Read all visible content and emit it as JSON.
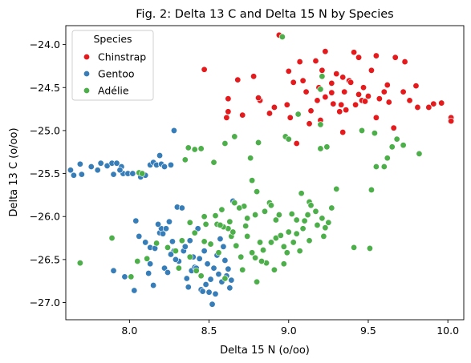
{
  "chart_data": {
    "type": "scatter",
    "title": "Fig. 2: Delta 13 C and Delta 15 N by Species",
    "xlabel": "Delta 15 N (o/oo)",
    "ylabel": "Delta 13 C (o/oo)",
    "xlim": [
      7.6,
      10.1
    ],
    "ylim": [
      -27.2,
      -23.78
    ],
    "xticks": [
      8.0,
      8.5,
      9.0,
      9.5,
      10.0
    ],
    "xtick_labels": [
      "8.0",
      "8.5",
      "9.0",
      "9.5",
      "10.0"
    ],
    "yticks": [
      -24.0,
      -24.5,
      -25.0,
      -25.5,
      -26.0,
      -26.5,
      -27.0
    ],
    "ytick_labels": [
      "−24.0",
      "−24.5",
      "−25.0",
      "−25.5",
      "−26.0",
      "−26.5",
      "−27.0"
    ],
    "grid": false,
    "legend": {
      "title": "Species",
      "placement": "upper-left"
    },
    "series": [
      {
        "name": "Chinstrap",
        "color": "#e41a1c",
        "points": [
          [
            8.94,
            -23.89
          ],
          [
            9.23,
            -24.08
          ],
          [
            9.41,
            -24.09
          ],
          [
            9.07,
            -24.2
          ],
          [
            9.17,
            -24.19
          ],
          [
            9.44,
            -24.15
          ],
          [
            9.55,
            -24.13
          ],
          [
            9.67,
            -24.15
          ],
          [
            9.73,
            -24.2
          ],
          [
            9.21,
            -24.3
          ],
          [
            9.0,
            -24.31
          ],
          [
            9.3,
            -24.34
          ],
          [
            9.52,
            -24.3
          ],
          [
            9.34,
            -24.38
          ],
          [
            9.38,
            -24.42
          ],
          [
            8.78,
            -24.37
          ],
          [
            8.68,
            -24.41
          ],
          [
            9.39,
            -24.44
          ],
          [
            9.03,
            -24.44
          ],
          [
            9.62,
            -24.47
          ],
          [
            9.8,
            -24.48
          ],
          [
            9.11,
            -24.55
          ],
          [
            9.27,
            -24.56
          ],
          [
            9.35,
            -24.55
          ],
          [
            9.23,
            -24.61
          ],
          [
            9.72,
            -24.55
          ],
          [
            9.76,
            -24.65
          ],
          [
            9.63,
            -24.67
          ],
          [
            9.57,
            -24.63
          ],
          [
            9.5,
            -24.6
          ],
          [
            9.44,
            -24.58
          ],
          [
            9.28,
            -24.69
          ],
          [
            9.42,
            -24.7
          ],
          [
            9.33,
            -24.7
          ],
          [
            9.46,
            -24.65
          ],
          [
            8.62,
            -24.63
          ],
          [
            8.82,
            -24.65
          ],
          [
            8.99,
            -24.7
          ],
          [
            9.18,
            -24.65
          ],
          [
            9.81,
            -24.73
          ],
          [
            9.91,
            -24.69
          ],
          [
            9.88,
            -24.73
          ],
          [
            9.96,
            -24.68
          ],
          [
            9.14,
            -24.77
          ],
          [
            9.32,
            -24.78
          ],
          [
            8.88,
            -24.8
          ],
          [
            8.71,
            -24.82
          ],
          [
            8.61,
            -24.85
          ],
          [
            9.01,
            -24.85
          ],
          [
            9.2,
            -24.88
          ],
          [
            9.36,
            -24.76
          ],
          [
            10.02,
            -24.85
          ],
          [
            10.02,
            -24.89
          ],
          [
            9.55,
            -24.85
          ],
          [
            9.13,
            -24.92
          ],
          [
            9.34,
            -25.02
          ],
          [
            9.66,
            -24.97
          ],
          [
            9.05,
            -25.15
          ],
          [
            8.47,
            -24.29
          ],
          [
            8.62,
            -24.78
          ],
          [
            8.81,
            -24.62
          ],
          [
            8.91,
            -24.73
          ],
          [
            9.48,
            -24.66
          ],
          [
            9.6,
            -24.55
          ],
          [
            9.27,
            -24.45
          ],
          [
            9.09,
            -24.42
          ],
          [
            9.19,
            -24.5
          ],
          [
            9.47,
            -24.5
          ]
        ]
      },
      {
        "name": "Gentoo",
        "color": "#377eb8",
        "points": [
          [
            7.63,
            -25.46
          ],
          [
            7.65,
            -25.52
          ],
          [
            7.69,
            -25.39
          ],
          [
            7.7,
            -25.51
          ],
          [
            7.76,
            -25.42
          ],
          [
            7.8,
            -25.46
          ],
          [
            7.82,
            -25.38
          ],
          [
            7.86,
            -25.41
          ],
          [
            7.89,
            -25.38
          ],
          [
            7.92,
            -25.38
          ],
          [
            7.9,
            -25.51
          ],
          [
            7.95,
            -25.42
          ],
          [
            7.96,
            -25.5
          ],
          [
            7.99,
            -25.5
          ],
          [
            8.02,
            -25.5
          ],
          [
            8.07,
            -25.54
          ],
          [
            8.1,
            -25.52
          ],
          [
            8.13,
            -25.4
          ],
          [
            8.15,
            -25.37
          ],
          [
            8.17,
            -25.4
          ],
          [
            8.2,
            -25.39
          ],
          [
            8.22,
            -25.42
          ],
          [
            8.26,
            -25.4
          ],
          [
            8.28,
            -25.0
          ],
          [
            8.19,
            -25.29
          ],
          [
            7.94,
            -25.46
          ],
          [
            8.04,
            -26.05
          ],
          [
            8.03,
            -26.86
          ],
          [
            7.9,
            -26.63
          ],
          [
            7.97,
            -26.7
          ],
          [
            8.06,
            -26.23
          ],
          [
            8.1,
            -26.3
          ],
          [
            8.13,
            -26.36
          ],
          [
            8.16,
            -26.37
          ],
          [
            8.19,
            -26.19
          ],
          [
            8.2,
            -26.14
          ],
          [
            8.21,
            -26.2
          ],
          [
            8.23,
            -26.14
          ],
          [
            8.25,
            -26.06
          ],
          [
            8.27,
            -26.29
          ],
          [
            8.28,
            -26.4
          ],
          [
            8.3,
            -25.89
          ],
          [
            8.31,
            -26.52
          ],
          [
            8.33,
            -25.9
          ],
          [
            8.34,
            -26.4
          ],
          [
            8.36,
            -26.72
          ],
          [
            8.38,
            -26.28
          ],
          [
            8.39,
            -26.63
          ],
          [
            8.4,
            -26.47
          ],
          [
            8.41,
            -26.59
          ],
          [
            8.43,
            -26.14
          ],
          [
            8.44,
            -26.49
          ],
          [
            8.45,
            -26.85
          ],
          [
            8.46,
            -26.87
          ],
          [
            8.48,
            -26.79
          ],
          [
            8.49,
            -26.55
          ],
          [
            8.5,
            -26.88
          ],
          [
            8.51,
            -26.73
          ],
          [
            8.52,
            -27.02
          ],
          [
            8.54,
            -26.9
          ],
          [
            8.55,
            -26.45
          ],
          [
            8.56,
            -26.67
          ],
          [
            8.57,
            -26.26
          ],
          [
            8.58,
            -26.76
          ],
          [
            8.6,
            -26.51
          ],
          [
            8.61,
            -26.69
          ],
          [
            8.62,
            -26.61
          ],
          [
            8.64,
            -26.74
          ],
          [
            8.65,
            -25.82
          ],
          [
            8.22,
            -26.6
          ],
          [
            8.24,
            -26.65
          ],
          [
            8.18,
            -26.09
          ],
          [
            8.13,
            -26.55
          ],
          [
            8.29,
            -26.5
          ],
          [
            8.35,
            -26.35
          ],
          [
            8.42,
            -26.6
          ],
          [
            8.47,
            -26.4
          ],
          [
            8.53,
            -26.6
          ],
          [
            8.15,
            -26.8
          ],
          [
            8.59,
            -26.35
          ],
          [
            8.63,
            -26.83
          ],
          [
            8.37,
            -26.82
          ],
          [
            8.12,
            -26.66
          ],
          [
            8.26,
            -26.44
          ]
        ]
      },
      {
        "name": "Adélie",
        "color": "#4daf4a",
        "points": [
          [
            8.96,
            -23.91
          ],
          [
            9.21,
            -24.37
          ],
          [
            9.2,
            -24.52
          ],
          [
            9.06,
            -24.81
          ],
          [
            9.2,
            -24.93
          ],
          [
            9.46,
            -25.0
          ],
          [
            9.54,
            -25.03
          ],
          [
            8.98,
            -25.07
          ],
          [
            9.0,
            -25.1
          ],
          [
            8.81,
            -25.14
          ],
          [
            8.66,
            -25.07
          ],
          [
            8.6,
            -25.15
          ],
          [
            8.45,
            -25.21
          ],
          [
            8.37,
            -25.2
          ],
          [
            8.41,
            -25.22
          ],
          [
            9.2,
            -25.21
          ],
          [
            9.24,
            -25.19
          ],
          [
            9.68,
            -25.1
          ],
          [
            9.72,
            -25.17
          ],
          [
            9.65,
            -25.19
          ],
          [
            9.62,
            -25.32
          ],
          [
            9.55,
            -25.42
          ],
          [
            9.82,
            -25.27
          ],
          [
            9.6,
            -25.42
          ],
          [
            8.53,
            -25.37
          ],
          [
            8.35,
            -25.34
          ],
          [
            8.76,
            -25.32
          ],
          [
            8.77,
            -25.58
          ],
          [
            8.06,
            -25.49
          ],
          [
            8.08,
            -25.5
          ],
          [
            8.66,
            -25.84
          ],
          [
            8.88,
            -25.84
          ],
          [
            9.08,
            -25.73
          ],
          [
            9.13,
            -25.83
          ],
          [
            9.14,
            -25.87
          ],
          [
            9.12,
            -25.98
          ],
          [
            9.17,
            -25.94
          ],
          [
            9.27,
            -25.9
          ],
          [
            9.3,
            -25.68
          ],
          [
            9.52,
            -25.69
          ],
          [
            9.41,
            -26.36
          ],
          [
            9.51,
            -26.37
          ],
          [
            8.8,
            -25.71
          ],
          [
            8.89,
            -25.87
          ],
          [
            8.94,
            -25.98
          ],
          [
            9.02,
            -25.97
          ],
          [
            9.05,
            -26.04
          ],
          [
            9.09,
            -26.14
          ],
          [
            9.18,
            -26.1
          ],
          [
            9.21,
            -26.02
          ],
          [
            9.23,
            -26.13
          ],
          [
            8.85,
            -25.94
          ],
          [
            8.79,
            -25.98
          ],
          [
            8.72,
            -25.88
          ],
          [
            8.73,
            -26.11
          ],
          [
            8.69,
            -25.9
          ],
          [
            8.74,
            -26.23
          ],
          [
            8.82,
            -26.3
          ],
          [
            8.84,
            -26.39
          ],
          [
            8.86,
            -26.54
          ],
          [
            8.89,
            -26.3
          ],
          [
            8.92,
            -26.25
          ],
          [
            8.95,
            -26.22
          ],
          [
            8.97,
            -26.35
          ],
          [
            8.99,
            -26.42
          ],
          [
            9.03,
            -26.3
          ],
          [
            9.05,
            -26.2
          ],
          [
            9.1,
            -26.05
          ],
          [
            9.22,
            -26.23
          ],
          [
            8.47,
            -26.0
          ],
          [
            8.48,
            -26.09
          ],
          [
            8.55,
            -26.09
          ],
          [
            8.58,
            -25.92
          ],
          [
            8.62,
            -26.14
          ],
          [
            8.64,
            -26.23
          ],
          [
            8.67,
            -26.34
          ],
          [
            8.7,
            -26.47
          ],
          [
            8.77,
            -26.42
          ],
          [
            8.79,
            -26.48
          ],
          [
            8.83,
            -26.52
          ],
          [
            8.91,
            -26.62
          ],
          [
            8.97,
            -26.55
          ],
          [
            8.54,
            -25.99
          ],
          [
            8.59,
            -26.12
          ],
          [
            8.63,
            -26.06
          ],
          [
            8.38,
            -26.07
          ],
          [
            8.33,
            -26.28
          ],
          [
            8.29,
            -26.4
          ],
          [
            8.38,
            -26.47
          ],
          [
            8.42,
            -26.63
          ],
          [
            8.45,
            -26.69
          ],
          [
            8.47,
            -26.29
          ],
          [
            8.51,
            -26.32
          ],
          [
            8.56,
            -26.42
          ],
          [
            8.6,
            -26.72
          ],
          [
            8.71,
            -26.62
          ],
          [
            8.8,
            -26.76
          ],
          [
            8.11,
            -26.49
          ],
          [
            8.01,
            -26.7
          ],
          [
            8.05,
            -26.52
          ],
          [
            7.89,
            -26.25
          ],
          [
            7.69,
            -26.54
          ],
          [
            8.17,
            -26.31
          ],
          [
            8.24,
            -26.36
          ],
          [
            8.31,
            -26.6
          ],
          [
            8.41,
            -26.19
          ],
          [
            8.57,
            -26.1
          ],
          [
            8.65,
            -26.18
          ],
          [
            8.74,
            -26.02
          ],
          [
            8.92,
            -26.04
          ],
          [
            9.0,
            -26.18
          ],
          [
            9.13,
            -26.28
          ],
          [
            9.25,
            -26.07
          ],
          [
            9.07,
            -26.4
          ]
        ]
      }
    ]
  }
}
